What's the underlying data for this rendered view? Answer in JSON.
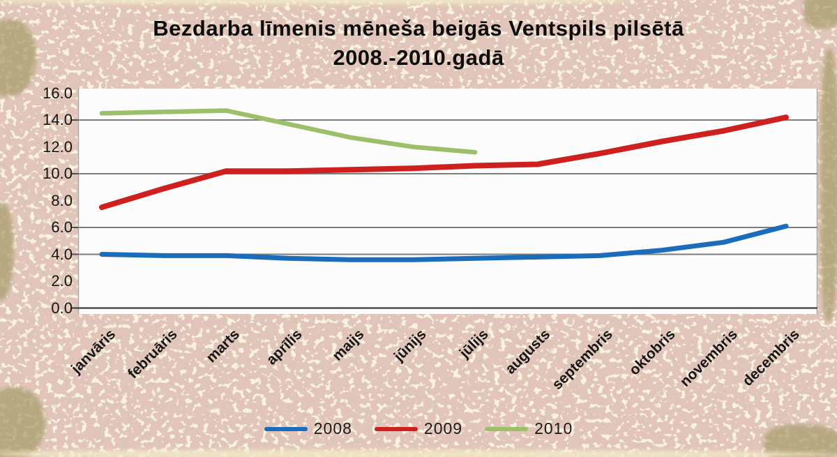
{
  "title": {
    "line1": "Bezdarba līmenis mēneša beigās Ventspils pilsētā",
    "line2": "2008.-2010.gadā"
  },
  "chart_data": {
    "type": "line",
    "categories": [
      "janvāris",
      "februāris",
      "marts",
      "aprīlis",
      "maijs",
      "jūnijs",
      "jūlijs",
      "augusts",
      "septembris",
      "oktobris",
      "novembris",
      "decembris"
    ],
    "series": [
      {
        "name": "2008",
        "color": "#1b6cbb",
        "values": [
          4.0,
          3.9,
          3.9,
          3.7,
          3.6,
          3.6,
          3.7,
          3.8,
          3.9,
          4.3,
          4.9,
          6.1
        ]
      },
      {
        "name": "2009",
        "color": "#cf2020",
        "values": [
          7.5,
          8.9,
          10.2,
          10.2,
          10.3,
          10.4,
          10.6,
          10.7,
          11.5,
          12.4,
          13.2,
          14.2
        ]
      },
      {
        "name": "2010",
        "color": "#9cbf69",
        "values": [
          14.5,
          14.6,
          14.7,
          13.7,
          12.7,
          12.0,
          11.6,
          null,
          null,
          null,
          null,
          null
        ]
      }
    ],
    "title": "Bezdarba līmenis mēneša beigās Ventspils pilsētā 2008.-2010.gadā",
    "xlabel": "",
    "ylabel": "",
    "ylim": [
      0,
      16
    ],
    "ytick_step": 2,
    "ytick_labels": [
      "16.0",
      "14.0",
      "12.0",
      "10.0",
      "8.0",
      "6.0",
      "4.0",
      "2.0",
      "0.0"
    ],
    "visible_gridlines": [
      14,
      10,
      6,
      4
    ],
    "grid": "horizontal-partial",
    "legend_position": "bottom"
  },
  "colors": {
    "page_background": "#e2c5ba",
    "speckle_cream": "#f6eec7",
    "speckle_olive": "#a29a68",
    "plot_background": "#fcfcfc",
    "gridline": "#7d7d7d",
    "axis_line": "#4d4d4d",
    "plot_border": "#a9a9a9",
    "title_text": "#0d0d0d",
    "axis_text": "#141414"
  }
}
